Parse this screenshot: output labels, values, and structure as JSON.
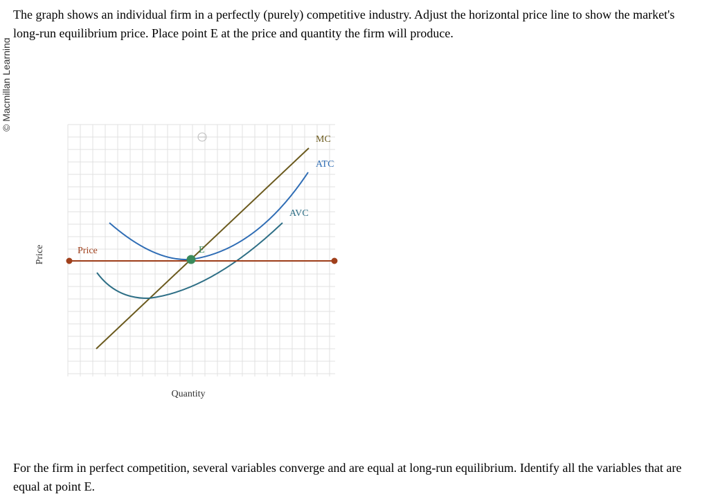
{
  "watermark": "© Macmillan Learning",
  "question": "The graph shows an individual firm in a perfectly (purely) competitive industry. Adjust the horizontal price line to show the market's long-run equilibrium price. Place point E at the price and quantity the firm will produce.",
  "footer": "For the firm in perfect competition, several variables converge and are equal at long-run equilibrium. Identify all the variables that are equal at point E.",
  "graph": {
    "y_axis_label": "Price",
    "x_axis_label": "Quantity",
    "curves": {
      "mc": {
        "label": "MC",
        "color": "#6b5a1e"
      },
      "atc": {
        "label": "ATC",
        "color": "#2f6db5"
      },
      "avc": {
        "label": "AVC",
        "color": "#2e6f86"
      }
    },
    "price_line": {
      "label": "Price",
      "color": "#a0401c"
    },
    "point_e": {
      "label": "E",
      "color": "#3a8a5c"
    }
  }
}
